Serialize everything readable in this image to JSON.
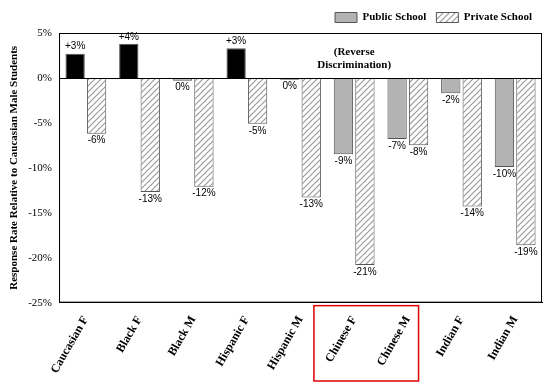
{
  "chart_data": {
    "type": "bar",
    "categories": [
      "Caucasian F",
      "Black F",
      "Black M",
      "Hispanic F",
      "Hispanic M",
      "Chinese F",
      "Chinese M",
      "Indian F",
      "Indian M"
    ],
    "series": [
      {
        "name": "Public School",
        "color": "#b3b3b3",
        "colors": [
          "#000000",
          "#000000",
          "#b3b3b3",
          "#000000",
          "#b3b3b3",
          "#b3b3b3",
          "#b3b3b3",
          "#b3b3b3",
          "#b3b3b3"
        ],
        "values": [
          2.7,
          3.8,
          -0.3,
          3.3,
          -0.2,
          -8.5,
          -6.8,
          -1.7,
          -9.9
        ],
        "value_labels": [
          "+3%",
          "+4%",
          "0%",
          "+3%",
          "0%",
          "-9%",
          "-7%",
          "-2%",
          "-10%"
        ]
      },
      {
        "name": "Private School",
        "color": "#9a9a9a",
        "values": [
          -6.2,
          -12.7,
          -12.1,
          -5.1,
          -13.3,
          -20.8,
          -7.5,
          -14.3,
          -18.6
        ],
        "value_labels": [
          "-6%",
          "-13%",
          "-12%",
          "-5%",
          "-13%",
          "-21%",
          "-8%",
          "-14%",
          "-19%"
        ]
      }
    ],
    "ylabel": "Response Rate Relative to Caucasian Male Students",
    "annotations": [
      "(Reverse Discrimination)"
    ],
    "ylim": [
      -25,
      5
    ],
    "yticks": [
      {
        "value": -25,
        "label": "-25%"
      },
      {
        "value": -20,
        "label": "-20%"
      },
      {
        "value": -15,
        "label": "-15%"
      },
      {
        "value": -10,
        "label": "-10%"
      },
      {
        "value": -5,
        "label": "-5%"
      },
      {
        "value": 0,
        "label": "0%"
      },
      {
        "value": 5,
        "label": "5%"
      }
    ],
    "grid": false,
    "legend": "top-right",
    "data_labels": true
  }
}
